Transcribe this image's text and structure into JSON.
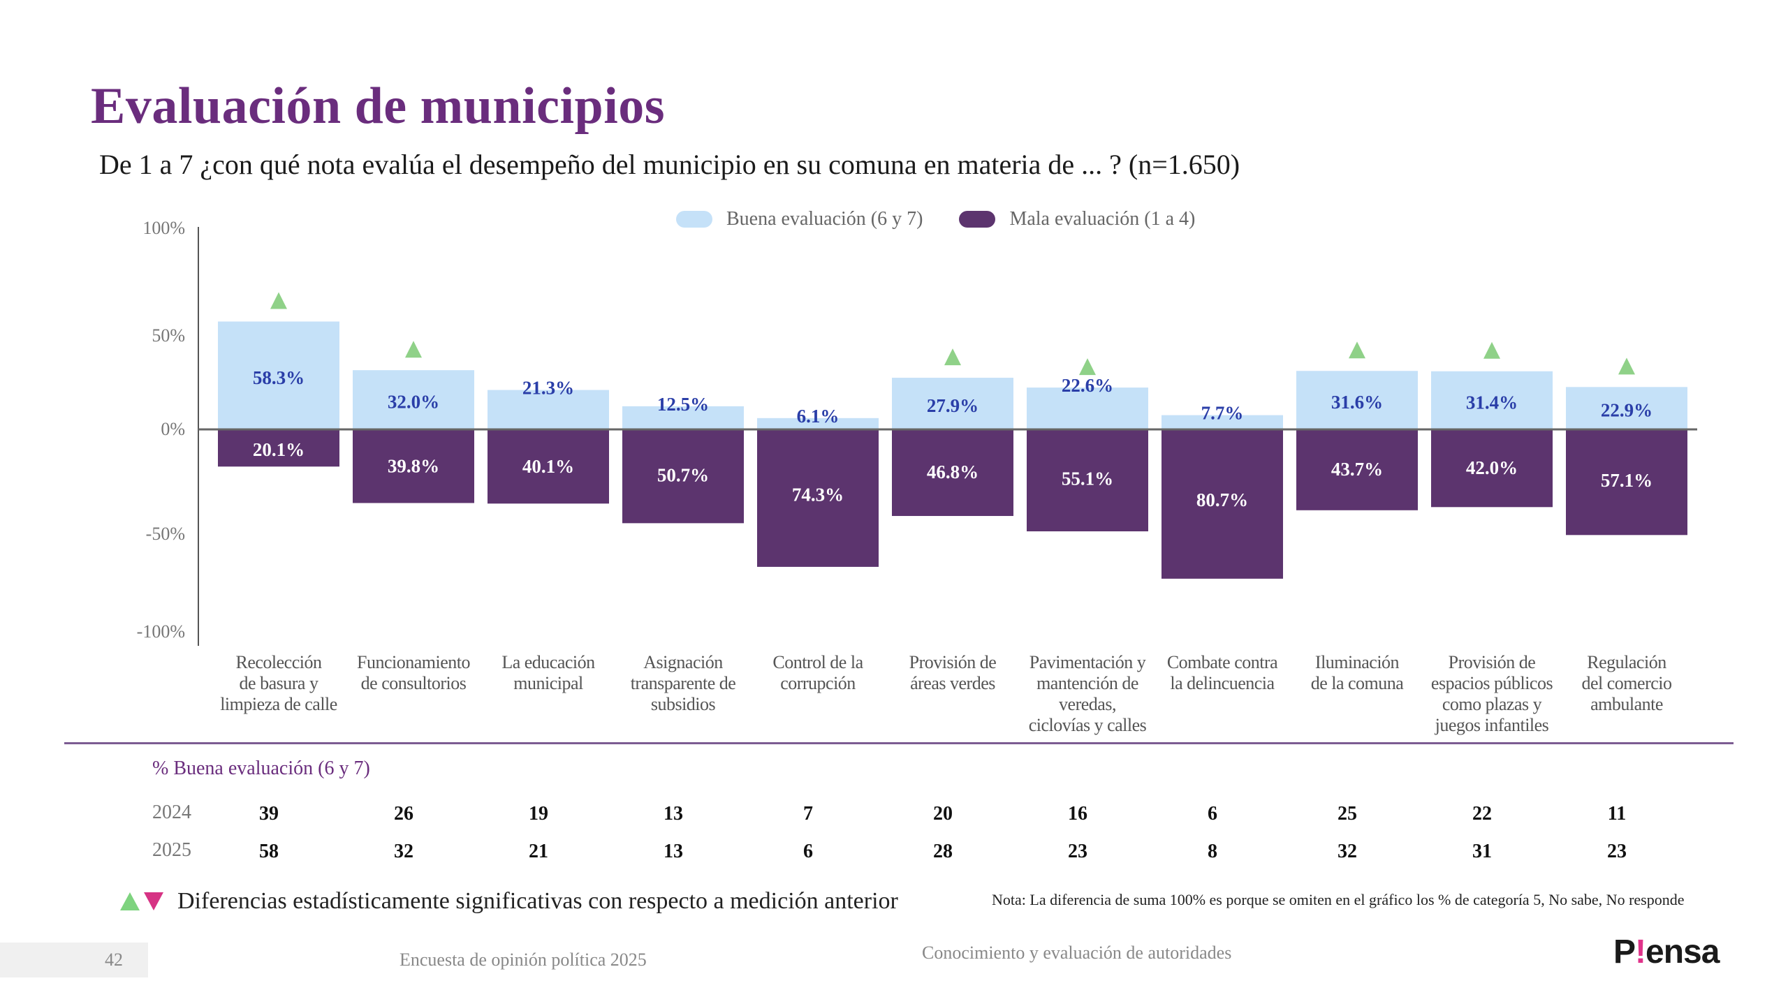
{
  "header": {
    "title": "Evaluación de municipios",
    "subtitle": "De 1 a 7 ¿con qué nota evalúa el desempeño del municipio en su comuna en materia de ... ? (n=1.650)"
  },
  "chart_data": {
    "type": "bar",
    "title": "Evaluación de municipios",
    "subtitle": "De 1 a 7 ¿con qué nota evalúa el desempeño del municipio en su comuna en materia de ... ? (n=1.650)",
    "xlabel": "",
    "ylabel": "",
    "ylim": [
      -100,
      100
    ],
    "yticks": [
      100,
      50,
      0,
      -50,
      -100
    ],
    "ytick_labels": [
      "100%",
      "50%",
      "0%",
      "-50%",
      "-100%"
    ],
    "grid": false,
    "legend_position": "top-center",
    "categories": [
      "Recolección de basura y limpieza de calle",
      "Funcionamiento de consultorios",
      "La educación municipal",
      "Asignación transparente de subsidios",
      "Control de la corrupción",
      "Provisión de áreas verdes",
      "Pavimentación y mantención de veredas, ciclovías y calles",
      "Combate contra la delincuencia",
      "Iluminación de la comuna",
      "Provisión de espacios públicos como plazas y juegos infantiles",
      "Regulación del comercio ambulante"
    ],
    "category_lines": [
      [
        "Recolección",
        "de basura y",
        "limpieza de calle"
      ],
      [
        "Funcionamiento",
        "de consultorios"
      ],
      [
        "La educación",
        "municipal"
      ],
      [
        "Asignación",
        "transparente de",
        "subsidios"
      ],
      [
        "Control de la",
        "corrupción"
      ],
      [
        "Provisión de",
        "áreas verdes"
      ],
      [
        "Pavimentación y",
        "mantención de",
        "veredas,",
        "ciclovías y calles"
      ],
      [
        "Combate contra",
        "la delincuencia"
      ],
      [
        "Iluminación",
        "de la comuna"
      ],
      [
        "Provisión de",
        "espacios públicos",
        "como plazas y",
        "juegos infantiles"
      ],
      [
        "Regulación",
        "del comercio",
        "ambulante"
      ]
    ],
    "series": [
      {
        "name": "Buena evaluación (6 y 7)",
        "color": "#c5e1f8",
        "label_color": "#2a3ea8",
        "values": [
          58.3,
          32.0,
          21.3,
          12.5,
          6.1,
          27.9,
          22.6,
          7.7,
          31.6,
          31.4,
          22.9
        ],
        "labels": [
          "58.3%",
          "32.0%",
          "21.3%",
          "12.5%",
          "6.1%",
          "27.9%",
          "22.6%",
          "7.7%",
          "31.6%",
          "31.4%",
          "22.9%"
        ]
      },
      {
        "name": "Mala evaluación (1 a 4)",
        "color": "#5c346e",
        "label_color": "#ffffff",
        "values": [
          -20.1,
          -39.8,
          -40.1,
          -50.7,
          -74.3,
          -46.8,
          -55.1,
          -80.7,
          -43.7,
          -42.0,
          -57.1
        ],
        "labels": [
          "20.1%",
          "39.8%",
          "40.1%",
          "50.7%",
          "74.3%",
          "46.8%",
          "55.1%",
          "80.7%",
          "43.7%",
          "42.0%",
          "57.1%"
        ]
      }
    ],
    "significance_up": [
      true,
      true,
      false,
      false,
      false,
      true,
      true,
      false,
      true,
      true,
      true
    ],
    "significance_color": "#8fd188"
  },
  "legend": {
    "good": "Buena evaluación (6 y 7)",
    "bad": "Mala evaluación (1 a 4)"
  },
  "table": {
    "header": "% Buena evaluación (6 y 7)",
    "rows": [
      {
        "year": "2024",
        "values": [
          "39",
          "26",
          "19",
          "13",
          "7",
          "20",
          "16",
          "6",
          "25",
          "22",
          "11"
        ]
      },
      {
        "year": "2025",
        "values": [
          "58",
          "32",
          "21",
          "13",
          "6",
          "28",
          "23",
          "8",
          "32",
          "31",
          "23"
        ]
      }
    ]
  },
  "notes": {
    "significance": "Diferencias estadísticamente significativas con respecto a medición anterior",
    "nota": "Nota: La diferencia de suma 100% es porque se omiten en el gráfico los % de categoría 5, No sabe, No responde"
  },
  "footer": {
    "page": "42",
    "survey": "Encuesta de opinión política 2025",
    "section": "Conocimiento y evaluación de autoridades",
    "logo_pre": "P",
    "logo_bang": "!",
    "logo_post": "ensa"
  }
}
